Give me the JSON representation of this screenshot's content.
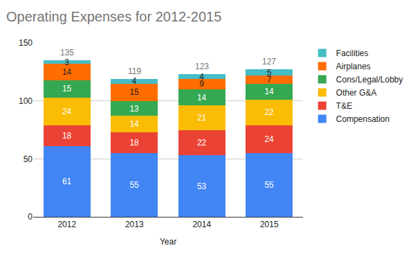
{
  "chart_data": {
    "type": "bar",
    "title": "Operating Expenses for 2012-2015",
    "x_label": "Year",
    "categories": [
      "2012",
      "2013",
      "2014",
      "2015"
    ],
    "series": [
      {
        "name": "Compensation",
        "color": "#4285f4",
        "values": [
          61,
          55,
          53,
          55
        ]
      },
      {
        "name": "T&E",
        "color": "#ea4335",
        "values": [
          18,
          18,
          22,
          24
        ]
      },
      {
        "name": "Other G&A",
        "color": "#fbbc04",
        "values": [
          24,
          14,
          21,
          22
        ]
      },
      {
        "name": "Cons/Legal/Lobby",
        "color": "#34a853",
        "values": [
          15,
          13,
          14,
          14
        ]
      },
      {
        "name": "Airplanes",
        "color": "#ff6d01",
        "values": [
          14,
          15,
          9,
          7
        ]
      },
      {
        "name": "Facilities",
        "color": "#46bdc6",
        "values": [
          3,
          4,
          4,
          5
        ]
      }
    ],
    "totals": [
      135,
      119,
      123,
      127
    ],
    "ylim": [
      0,
      150
    ],
    "yticks": [
      0,
      50,
      100,
      150
    ],
    "grid": true,
    "stacked": true,
    "data_labels": true,
    "legend": "right"
  }
}
